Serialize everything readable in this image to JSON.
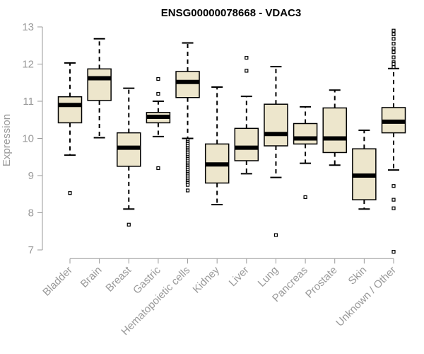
{
  "chart_data": {
    "type": "boxplot",
    "title": "ENSG00000078668 - VDAC3",
    "ylabel": "Expression",
    "xlabel": "",
    "ylim": [
      6.9,
      13.0
    ],
    "yticks": [
      7,
      8,
      9,
      10,
      11,
      12,
      13
    ],
    "categories": [
      "Bladder",
      "Brain",
      "Breast",
      "Gastric",
      "Hematopoietic cells",
      "Kidney",
      "Liver",
      "Lung",
      "Pancreas",
      "Prostate",
      "Skin",
      "Unknown / Other"
    ],
    "boxes": [
      {
        "name": "Bladder",
        "whisker_low": 9.55,
        "q1": 10.42,
        "median": 10.9,
        "q3": 11.12,
        "whisker_high": 12.03,
        "outliers": [
          8.53
        ]
      },
      {
        "name": "Brain",
        "whisker_low": 10.02,
        "q1": 11.02,
        "median": 11.62,
        "q3": 11.87,
        "whisker_high": 12.68,
        "outliers": []
      },
      {
        "name": "Breast",
        "whisker_low": 8.1,
        "q1": 9.25,
        "median": 9.75,
        "q3": 10.15,
        "whisker_high": 11.35,
        "outliers": [
          7.68
        ]
      },
      {
        "name": "Gastric",
        "whisker_low": 10.05,
        "q1": 10.42,
        "median": 10.58,
        "q3": 10.7,
        "whisker_high": 11.0,
        "outliers": [
          11.6,
          11.2,
          9.2
        ]
      },
      {
        "name": "Hematopoietic cells",
        "whisker_low": 10.0,
        "q1": 11.1,
        "median": 11.52,
        "q3": 11.8,
        "whisker_high": 12.57,
        "outliers": [
          9.95,
          9.9,
          9.85,
          9.8,
          9.75,
          9.7,
          9.65,
          9.6,
          9.55,
          9.5,
          9.45,
          9.4,
          9.35,
          9.3,
          9.25,
          9.2,
          9.15,
          9.1,
          9.05,
          9.0,
          8.95,
          8.9,
          8.85,
          8.8,
          8.75,
          8.6
        ]
      },
      {
        "name": "Kidney",
        "whisker_low": 8.22,
        "q1": 8.8,
        "median": 9.3,
        "q3": 9.85,
        "whisker_high": 11.38,
        "outliers": []
      },
      {
        "name": "Liver",
        "whisker_low": 9.05,
        "q1": 9.4,
        "median": 9.75,
        "q3": 10.27,
        "whisker_high": 11.13,
        "outliers": [
          12.17,
          11.82
        ]
      },
      {
        "name": "Lung",
        "whisker_low": 8.95,
        "q1": 9.8,
        "median": 10.12,
        "q3": 10.92,
        "whisker_high": 11.93,
        "outliers": [
          7.4
        ]
      },
      {
        "name": "Pancreas",
        "whisker_low": 9.33,
        "q1": 9.85,
        "median": 10.0,
        "q3": 10.4,
        "whisker_high": 10.85,
        "outliers": [
          8.42
        ]
      },
      {
        "name": "Prostate",
        "whisker_low": 9.28,
        "q1": 9.62,
        "median": 10.0,
        "q3": 10.82,
        "whisker_high": 11.3,
        "outliers": []
      },
      {
        "name": "Skin",
        "whisker_low": 8.1,
        "q1": 8.35,
        "median": 9.0,
        "q3": 9.72,
        "whisker_high": 10.22,
        "outliers": []
      },
      {
        "name": "Unknown / Other",
        "whisker_low": 9.15,
        "q1": 10.15,
        "median": 10.45,
        "q3": 10.83,
        "whisker_high": 11.88,
        "outliers": [
          12.9,
          12.8,
          12.68,
          12.55,
          12.42,
          12.32,
          12.18,
          12.05,
          12.0,
          11.92,
          8.72,
          8.35,
          8.12,
          6.95
        ]
      }
    ],
    "colors": {
      "box_fill": "#ede6cc",
      "box_stroke": "#000000",
      "axis": "#999999",
      "title": "#000000"
    },
    "grid": false,
    "legend": "none"
  }
}
